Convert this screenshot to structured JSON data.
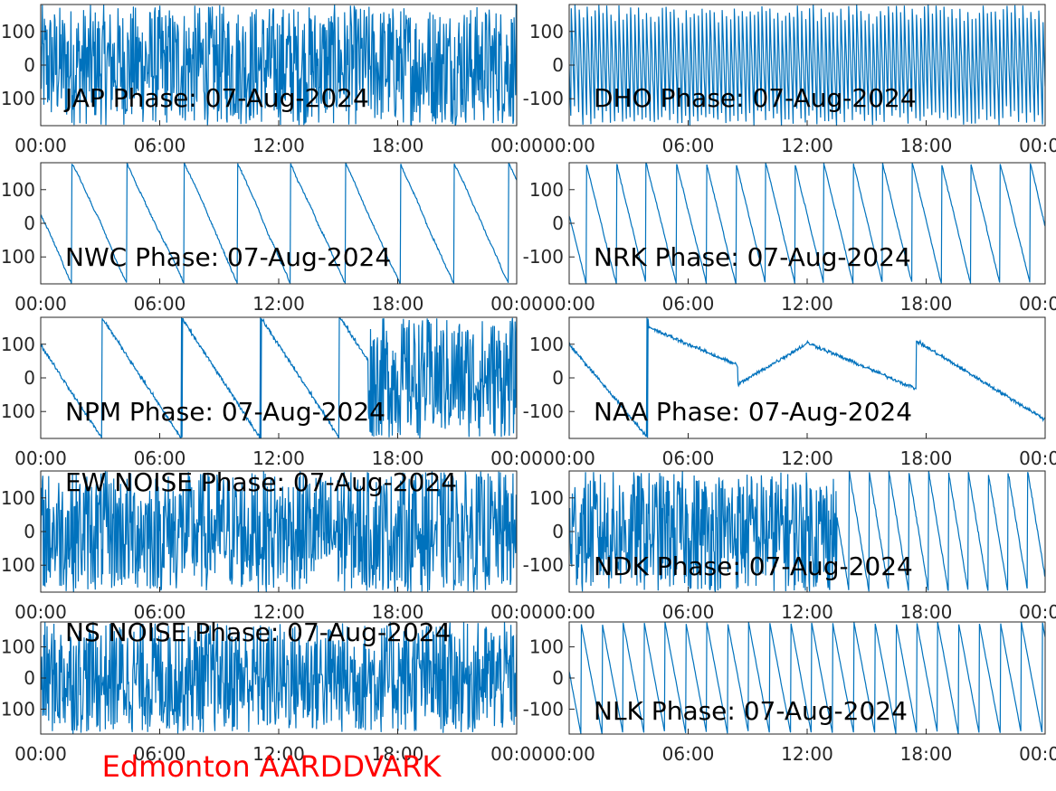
{
  "footer": {
    "text": "Edmonton AARDDVARK",
    "color": "#ff0000"
  },
  "style": {
    "line_color": "#0072bd",
    "axis_color": "#262626"
  },
  "chart_data": [
    {
      "type": "line",
      "title": "JAP Phase: 07-Aug-2024",
      "xticks": [
        "00:00",
        "06:00",
        "12:00",
        "18:00",
        "00:00"
      ],
      "yticks": [
        "100",
        "0",
        "-100"
      ],
      "ylim": [
        -180,
        180
      ],
      "xlim_hours": [
        0,
        24
      ],
      "pattern": "noise",
      "params": {
        "dens": 900,
        "drift": 0
      }
    },
    {
      "type": "line",
      "title": "DHO Phase: 07-Aug-2024",
      "xticks": [
        "00:00",
        "06:00",
        "12:00",
        "18:00",
        "00:00"
      ],
      "yticks": [
        "100",
        "0",
        "-100"
      ],
      "ylim": [
        -180,
        180
      ],
      "xlim_hours": [
        0,
        24
      ],
      "pattern": "wrap",
      "params": {
        "rate": -1800,
        "noise": 25
      }
    },
    {
      "type": "line",
      "title": "NWC Phase: 07-Aug-2024",
      "xticks": [
        "00:00",
        "06:00",
        "12:00",
        "18:00",
        "00:00"
      ],
      "yticks": [
        "100",
        "0",
        "-100"
      ],
      "ylim": [
        -180,
        180
      ],
      "xlim_hours": [
        0,
        24
      ],
      "pattern": "wrap",
      "params": {
        "rate": -130,
        "noise": 6
      }
    },
    {
      "type": "line",
      "title": "NRK Phase: 07-Aug-2024",
      "xticks": [
        "00:00",
        "06:00",
        "12:00",
        "18:00",
        "00:00"
      ],
      "yticks": [
        "100",
        "0",
        "-100"
      ],
      "ylim": [
        -180,
        180
      ],
      "xlim_hours": [
        0,
        24
      ],
      "pattern": "wrap",
      "params": {
        "rate": -240,
        "noise": 5
      }
    },
    {
      "type": "line",
      "title": "NPM Phase: 07-Aug-2024",
      "xticks": [
        "00:00",
        "06:00",
        "12:00",
        "18:00",
        "00:00"
      ],
      "yticks": [
        "100",
        "0",
        "-100"
      ],
      "ylim": [
        -180,
        180
      ],
      "xlim_hours": [
        0,
        24
      ],
      "pattern": "wrapnoise",
      "params": {
        "rate": -90,
        "noise": 4,
        "switch": 16.5
      }
    },
    {
      "type": "line",
      "title": "NAA Phase: 07-Aug-2024",
      "xticks": [
        "00:00",
        "06:00",
        "12:00",
        "18:00",
        "00:00"
      ],
      "yticks": [
        "100",
        "0",
        "-100"
      ],
      "ylim": [
        -180,
        180
      ],
      "xlim_hours": [
        0,
        24
      ],
      "pattern": "slow",
      "params": {
        "noise": 4
      }
    },
    {
      "type": "line",
      "title": "EW NOISE Phase: 07-Aug-2024",
      "xticks": [
        "00:00",
        "06:00",
        "12:00",
        "18:00",
        "00:00"
      ],
      "yticks": [
        "100",
        "0",
        "-100"
      ],
      "ylim": [
        -180,
        180
      ],
      "xlim_hours": [
        0,
        24
      ],
      "pattern": "noise",
      "params": {
        "dens": 500,
        "drift": 0
      }
    },
    {
      "type": "line",
      "title": "NDK Phase: 07-Aug-2024",
      "xticks": [
        "00:00",
        "06:00",
        "12:00",
        "18:00",
        "00:00"
      ],
      "yticks": [
        "100",
        "0",
        "-100"
      ],
      "ylim": [
        -180,
        180
      ],
      "xlim_hours": [
        0,
        24
      ],
      "pattern": "noisewrap",
      "params": {
        "rate": -360,
        "noise": 3,
        "switch": 13.5
      }
    },
    {
      "type": "line",
      "title": "NS NOISE Phase: 07-Aug-2024",
      "xticks": [
        "00:00",
        "06:00",
        "12:00",
        "18:00",
        "00:00"
      ],
      "yticks": [
        "100",
        "0",
        "-100"
      ],
      "ylim": [
        -180,
        180
      ],
      "xlim_hours": [
        0,
        24
      ],
      "pattern": "noise",
      "params": {
        "dens": 500,
        "drift": 0
      }
    },
    {
      "type": "line",
      "title": "NLK Phase: 07-Aug-2024",
      "xticks": [
        "00:00",
        "06:00",
        "12:00",
        "18:00",
        "00:00"
      ],
      "yticks": [
        "100",
        "0",
        "-100"
      ],
      "ylim": [
        -180,
        180
      ],
      "xlim_hours": [
        0,
        24
      ],
      "pattern": "wrap",
      "params": {
        "rate": -340,
        "noise": 3
      }
    }
  ]
}
